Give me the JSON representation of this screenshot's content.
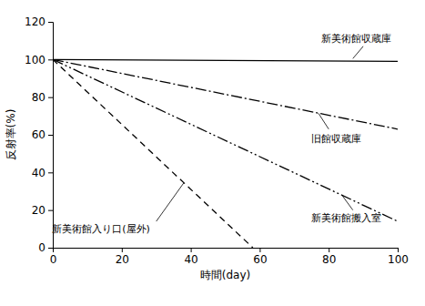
{
  "chart_data": {
    "type": "line",
    "x_label": "時間(day)",
    "y_label": "反射率(%)",
    "xlim": [
      0,
      100
    ],
    "xticks": [
      0,
      20,
      40,
      60,
      80,
      100
    ],
    "ylim": [
      0,
      120
    ],
    "yticks": [
      0,
      20,
      40,
      60,
      80,
      100,
      120
    ],
    "series": [
      {
        "name": "新美術館収蔵庫",
        "color": "#000000",
        "line_style": "solid",
        "x": [
          0,
          100
        ],
        "values": [
          100,
          99
        ]
      },
      {
        "name": "旧館収蔵庫",
        "color": "#000000",
        "line_style": "dashdot",
        "x": [
          0,
          100
        ],
        "values": [
          100,
          63
        ]
      },
      {
        "name": "新美術館搬入室",
        "color": "#000000",
        "line_style": "dashdotdot",
        "x": [
          0,
          100
        ],
        "values": [
          100,
          14
        ]
      },
      {
        "name": "新美術館入り口(屋外)",
        "color": "#000000",
        "line_style": "dashed",
        "x": [
          0,
          58
        ],
        "values": [
          100,
          0
        ]
      }
    ]
  }
}
